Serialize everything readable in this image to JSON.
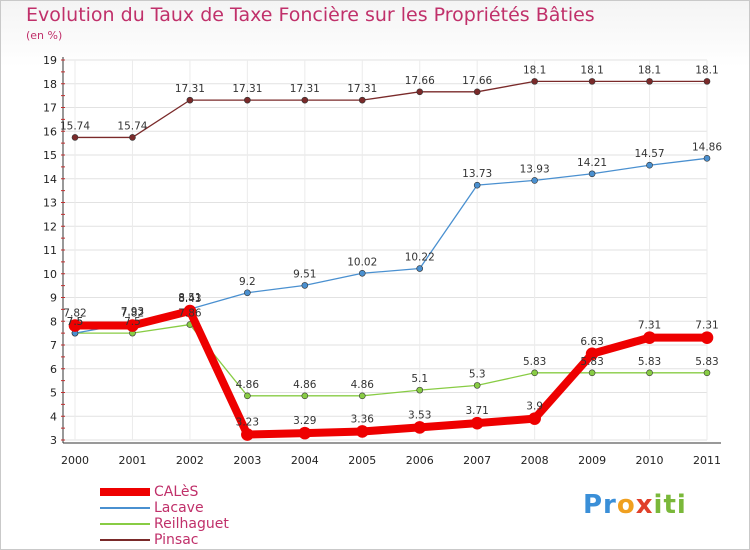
{
  "title": "Evolution du Taux de Taxe Foncière sur les Propriétés Bâties",
  "unit_label": "(en %)",
  "logo": "Proxiti",
  "chart_data": {
    "type": "line",
    "x": [
      "2000",
      "2001",
      "2002",
      "2003",
      "2004",
      "2005",
      "2006",
      "2007",
      "2008",
      "2009",
      "2010",
      "2011"
    ],
    "ylim": [
      3,
      19
    ],
    "yticks": [
      3,
      4,
      5,
      6,
      7,
      8,
      9,
      10,
      11,
      12,
      13,
      14,
      15,
      16,
      17,
      18,
      19
    ],
    "grid": true,
    "legend_position": "bottom-left",
    "series": [
      {
        "name": "CALèS",
        "color": "#ee0000",
        "width": 8,
        "dot": 6,
        "values": [
          7.82,
          7.82,
          8.43,
          3.23,
          3.29,
          3.36,
          3.53,
          3.71,
          3.9,
          6.63,
          7.31,
          7.31
        ],
        "labels": [
          "7.82",
          "7.82",
          "8.43",
          "3.23",
          "3.29",
          "3.36",
          "3.53",
          "3.71",
          "3.9",
          "6.63",
          "7.31",
          "7.31"
        ]
      },
      {
        "name": "Lacave",
        "color": "#4a90d0",
        "width": 1.3,
        "dot": 3,
        "values": [
          7.5,
          7.93,
          8.51,
          9.2,
          9.51,
          10.02,
          10.22,
          13.73,
          13.93,
          14.21,
          14.57,
          14.86
        ],
        "labels": [
          "7.5",
          "7.93",
          "8.51",
          "9.2",
          "9.51",
          "10.02",
          "10.22",
          "13.73",
          "13.93",
          "14.21",
          "14.57",
          "14.86"
        ]
      },
      {
        "name": "Reilhaguet",
        "color": "#88cc44",
        "width": 1.3,
        "dot": 3,
        "values": [
          7.5,
          7.5,
          7.86,
          4.86,
          4.86,
          4.86,
          5.1,
          5.3,
          5.83,
          5.83,
          5.83,
          5.83
        ],
        "labels": [
          "7.5",
          "7.5",
          "7.86",
          "4.86",
          "4.86",
          "4.86",
          "5.1",
          "5.3",
          "5.83",
          "5.83",
          "5.83",
          "5.83"
        ]
      },
      {
        "name": "Pinsac",
        "color": "#7a2a2a",
        "width": 1.3,
        "dot": 3,
        "values": [
          15.74,
          15.74,
          17.31,
          17.31,
          17.31,
          17.31,
          17.66,
          17.66,
          18.1,
          18.1,
          18.1,
          18.1
        ],
        "labels": [
          "15.74",
          "15.74",
          "17.31",
          "17.31",
          "17.31",
          "17.31",
          "17.66",
          "17.66",
          "18.1",
          "18.1",
          "18.1",
          "18.1"
        ]
      }
    ]
  }
}
